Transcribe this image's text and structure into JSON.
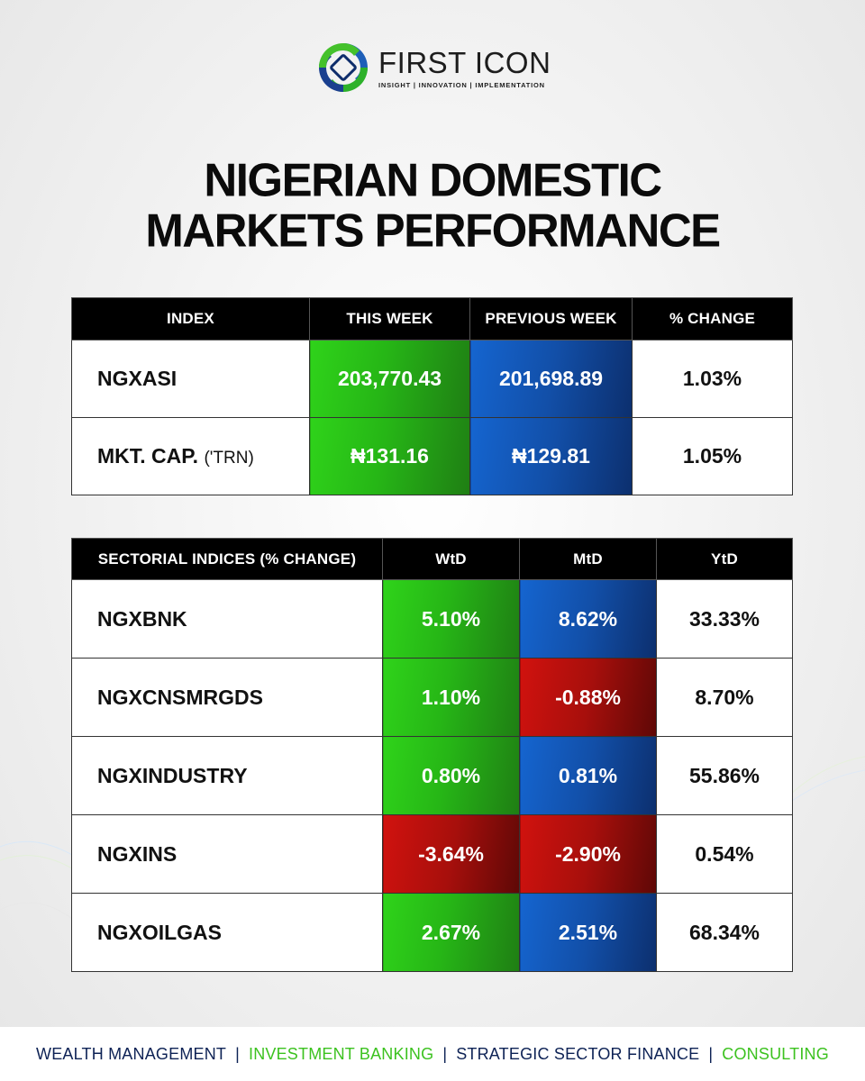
{
  "brand": {
    "name": "FIRST ICON",
    "tagline": "INSIGHT | INNOVATION | IMPLEMENTATION",
    "colors": {
      "green": "#2fd31a",
      "blue": "#124fa8",
      "red": "#a70f0c",
      "navy": "#0d2255"
    }
  },
  "title": {
    "line1": "NIGERIAN DOMESTIC",
    "line2": "MARKETS PERFORMANCE"
  },
  "market_table": {
    "headers": [
      "INDEX",
      "THIS WEEK",
      "PREVIOUS WEEK",
      "% CHANGE"
    ],
    "rows": [
      {
        "index": "NGXASI",
        "unit": "",
        "this_week": "203,770.43",
        "previous_week": "201,698.89",
        "change": "1.03%"
      },
      {
        "index": "MKT. CAP.",
        "unit": "('TRN)",
        "this_week": "₦131.16",
        "previous_week": "₦129.81",
        "change": "1.05%"
      }
    ]
  },
  "sector_table": {
    "headers": [
      "SECTORIAL INDICES (% CHANGE)",
      "WtD",
      "MtD",
      "YtD"
    ],
    "rows": [
      {
        "index": "NGXBNK",
        "wtd": "5.10%",
        "mtd": "8.62%",
        "ytd": "33.33%"
      },
      {
        "index": "NGXCNSMRGDS",
        "wtd": "1.10%",
        "mtd": "-0.88%",
        "ytd": "8.70%"
      },
      {
        "index": "NGXINDUSTRY",
        "wtd": "0.80%",
        "mtd": "0.81%",
        "ytd": "55.86%"
      },
      {
        "index": "NGXINS",
        "wtd": "-3.64%",
        "mtd": "-2.90%",
        "ytd": "0.54%"
      },
      {
        "index": "NGXOILGAS",
        "wtd": "2.67%",
        "mtd": "2.51%",
        "ytd": "68.34%"
      }
    ]
  },
  "footer": {
    "items": [
      "WEALTH MANAGEMENT",
      "INVESTMENT BANKING",
      "STRATEGIC SECTOR FINANCE",
      "CONSULTING"
    ],
    "separator": "|"
  }
}
